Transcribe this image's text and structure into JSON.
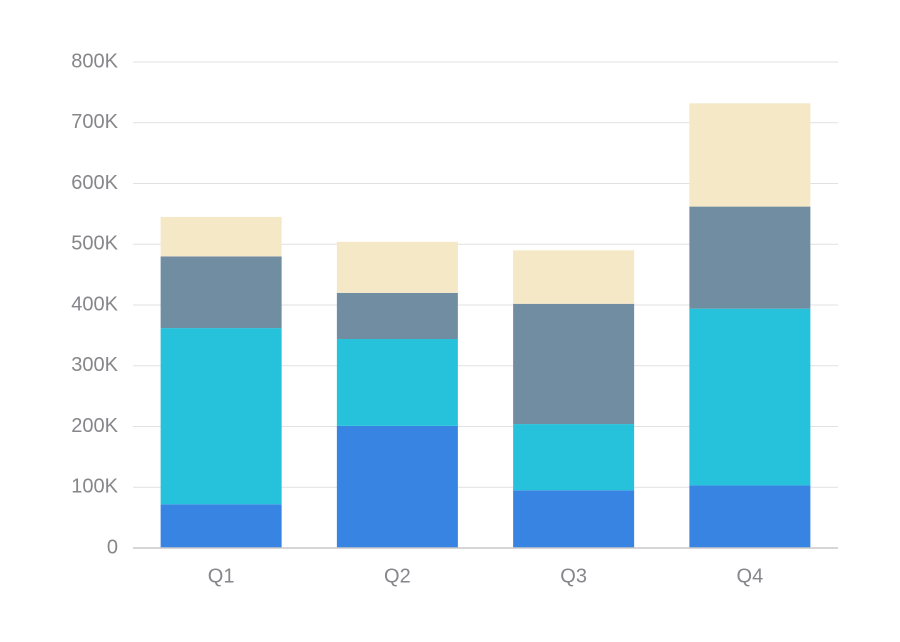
{
  "chart_data": {
    "type": "bar",
    "stacked": true,
    "categories": [
      "Q1",
      "Q2",
      "Q3",
      "Q4"
    ],
    "series": [
      {
        "values": [
          72000,
          201000,
          95000,
          103000
        ],
        "color": "#3784e3"
      },
      {
        "values": [
          290000,
          143000,
          109000,
          291000
        ],
        "color": "#26c2db"
      },
      {
        "values": [
          118000,
          76000,
          198000,
          168000
        ],
        "color": "#708da2"
      },
      {
        "values": [
          65000,
          84000,
          88000,
          170000
        ],
        "color": "#f5e8c7"
      }
    ],
    "ylim": [
      0,
      800000
    ],
    "y_ticks": [
      0,
      100000,
      200000,
      300000,
      400000,
      500000,
      600000,
      700000,
      800000
    ],
    "y_tick_labels": [
      "0",
      "100K",
      "200K",
      "300K",
      "400K",
      "500K",
      "600K",
      "700K",
      "800K"
    ],
    "grid": true,
    "legend": "none"
  }
}
